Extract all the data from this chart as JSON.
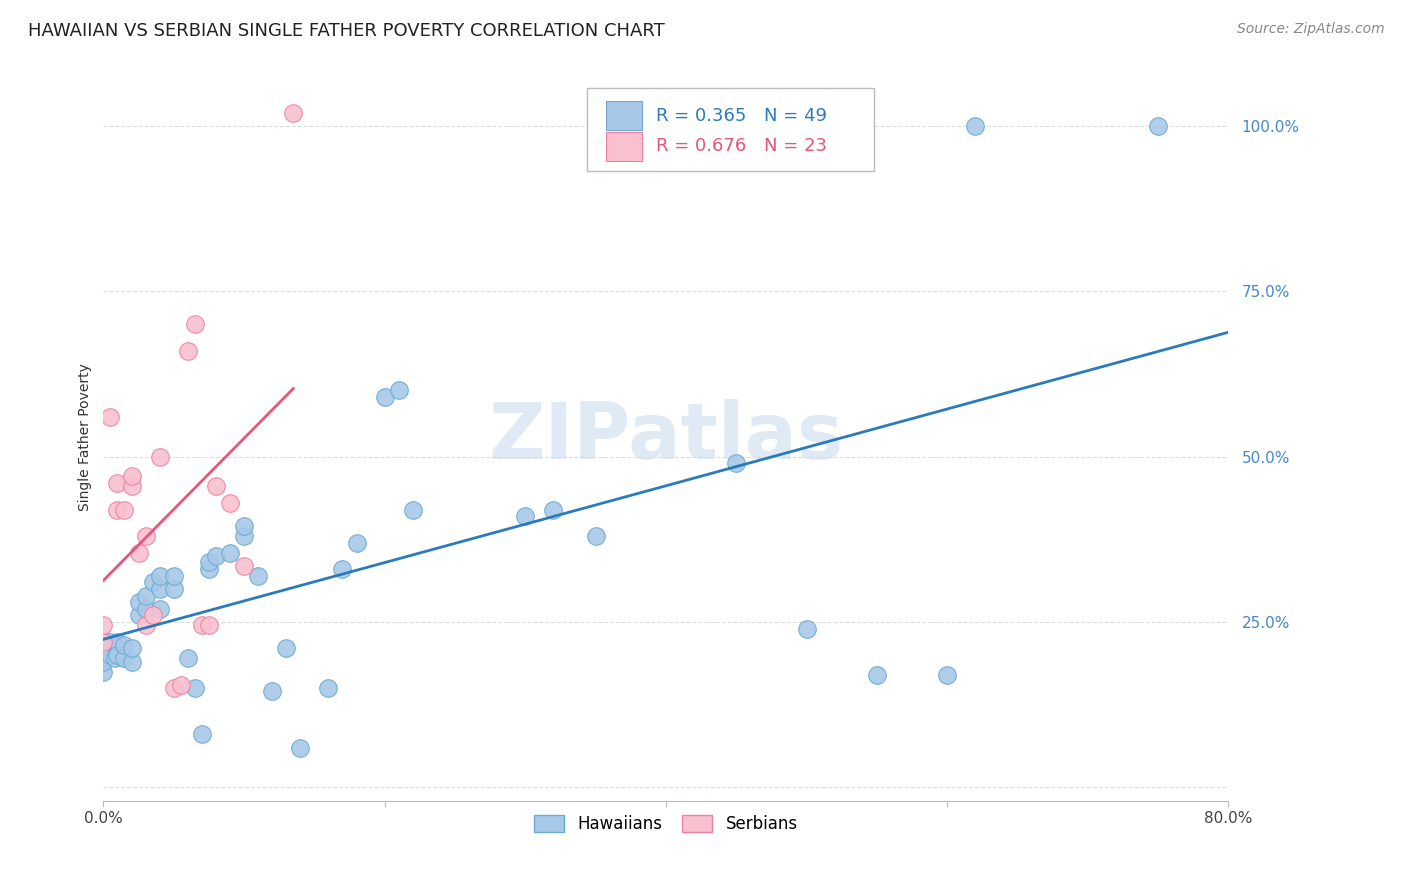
{
  "title": "HAWAIIAN VS SERBIAN SINGLE FATHER POVERTY CORRELATION CHART",
  "source": "Source: ZipAtlas.com",
  "ylabel": "Single Father Poverty",
  "watermark": "ZIPatlas",
  "xlim": [
    0.0,
    0.8
  ],
  "ylim": [
    -0.02,
    1.08
  ],
  "yticks": [
    0.0,
    0.25,
    0.5,
    0.75,
    1.0
  ],
  "ytick_labels": [
    "",
    "25.0%",
    "50.0%",
    "75.0%",
    "100.0%"
  ],
  "xticks": [
    0.0,
    0.2,
    0.4,
    0.6,
    0.8
  ],
  "xtick_labels": [
    "0.0%",
    "",
    "",
    "",
    "80.0%"
  ],
  "hawaiian_color": "#a8c8e8",
  "serbian_color": "#f9c0d0",
  "hawaiian_edge_color": "#6aaad4",
  "serbian_edge_color": "#f080a0",
  "hawaiian_line_color": "#2b7bba",
  "serbian_line_color": "#e8547a",
  "legend_R_hawaiian": "0.365",
  "legend_N_hawaiian": "49",
  "legend_R_serbian": "0.676",
  "legend_N_serbian": "23",
  "hawaiian_x": [
    0.0,
    0.0,
    0.005,
    0.005,
    0.008,
    0.01,
    0.01,
    0.015,
    0.015,
    0.02,
    0.02,
    0.025,
    0.025,
    0.03,
    0.03,
    0.035,
    0.04,
    0.04,
    0.04,
    0.05,
    0.05,
    0.06,
    0.065,
    0.07,
    0.075,
    0.075,
    0.08,
    0.09,
    0.1,
    0.1,
    0.11,
    0.12,
    0.13,
    0.14,
    0.16,
    0.17,
    0.18,
    0.2,
    0.21,
    0.22,
    0.3,
    0.32,
    0.35,
    0.45,
    0.5,
    0.55,
    0.6,
    0.62,
    0.75
  ],
  "hawaiian_y": [
    0.175,
    0.19,
    0.2,
    0.22,
    0.195,
    0.22,
    0.2,
    0.195,
    0.215,
    0.19,
    0.21,
    0.26,
    0.28,
    0.27,
    0.29,
    0.31,
    0.27,
    0.3,
    0.32,
    0.3,
    0.32,
    0.195,
    0.15,
    0.08,
    0.33,
    0.34,
    0.35,
    0.355,
    0.38,
    0.395,
    0.32,
    0.145,
    0.21,
    0.06,
    0.15,
    0.33,
    0.37,
    0.59,
    0.6,
    0.42,
    0.41,
    0.42,
    0.38,
    0.49,
    0.24,
    0.17,
    0.17,
    1.0,
    1.0
  ],
  "serbian_x": [
    0.0,
    0.0,
    0.005,
    0.01,
    0.01,
    0.015,
    0.02,
    0.02,
    0.025,
    0.03,
    0.03,
    0.035,
    0.04,
    0.05,
    0.055,
    0.06,
    0.065,
    0.07,
    0.075,
    0.08,
    0.09,
    0.1,
    0.135
  ],
  "serbian_y": [
    0.22,
    0.245,
    0.56,
    0.42,
    0.46,
    0.42,
    0.455,
    0.47,
    0.355,
    0.38,
    0.245,
    0.26,
    0.5,
    0.15,
    0.155,
    0.66,
    0.7,
    0.245,
    0.245,
    0.455,
    0.43,
    0.335,
    1.02
  ],
  "background_color": "#ffffff",
  "grid_color": "#dddddd",
  "title_color": "#222222",
  "right_label_color": "#4488cc",
  "title_fontsize": 13,
  "label_fontsize": 10,
  "tick_fontsize": 11,
  "legend_fontsize": 13,
  "source_fontsize": 10
}
